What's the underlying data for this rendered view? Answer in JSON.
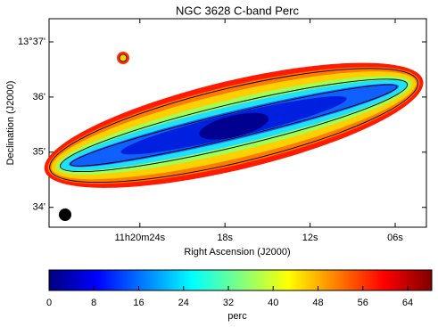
{
  "chart_data": {
    "type": "image",
    "title": "NGC 3628   C-band   Perc",
    "x_label": "Right Ascension (J2000)",
    "y_label": "Declination (J2000)",
    "xlim": [
      30.4,
      3.8
    ],
    "xticks": [
      {
        "value": 24,
        "label": "11h20m24s"
      },
      {
        "value": 18,
        "label": "18s"
      },
      {
        "value": 12,
        "label": "12s"
      },
      {
        "value": 6,
        "label": "06s"
      }
    ],
    "ylim": [
      33.64,
      37.42
    ],
    "yticks": [
      {
        "value": 37,
        "label": "13°37'"
      },
      {
        "value": 36,
        "label": "36'"
      },
      {
        "value": 35,
        "label": "35'"
      },
      {
        "value": 34,
        "label": "34'"
      }
    ],
    "colorbar": {
      "label": "perc",
      "lim": [
        0,
        68.3
      ],
      "ticks": [
        0,
        8,
        16,
        24,
        32,
        40,
        48,
        56,
        64
      ],
      "colormap": [
        "#00007f",
        "#0000ff",
        "#0080ff",
        "#00ffff",
        "#80ff80",
        "#ffff00",
        "#ff8000",
        "#ff0000",
        "#800000"
      ]
    }
  }
}
